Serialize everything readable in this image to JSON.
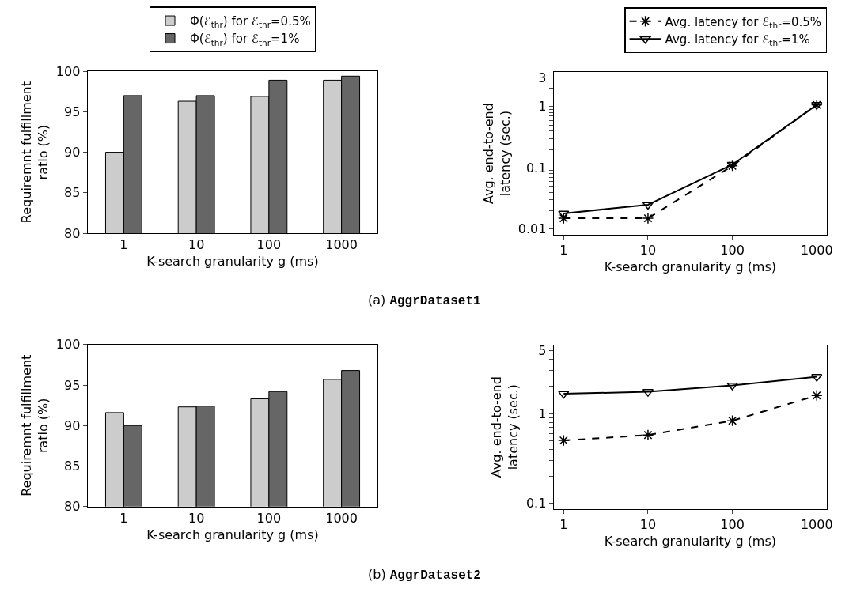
{
  "chart_data": [
    {
      "type": "bar",
      "categories": [
        "1",
        "10",
        "100",
        "1000"
      ],
      "xlabel": "K-search granularity g (ms)",
      "ylabel": "Requiremnt fulfillment ratio (%)",
      "ylim": [
        80,
        100
      ],
      "yticks": [
        80,
        85,
        90,
        95,
        100
      ],
      "legend": "top",
      "annotations": [
        "(a) AggrDataset1"
      ],
      "series": [
        {
          "name": "Φ(ℰ$_{thr}$) for ℰ$_{thr}$=0.5%",
          "color": "#cccccc",
          "values": [
            90.0,
            96.3,
            96.9,
            98.9
          ]
        },
        {
          "name": "Φ(ℰ$_{thr}$) for ℰ$_{thr}$=1%",
          "color": "#666666",
          "values": [
            97.0,
            97.0,
            98.9,
            99.4
          ]
        }
      ]
    },
    {
      "type": "line",
      "x": [
        1,
        10,
        100,
        1000
      ],
      "xlabel": "K-search granularity g (ms)",
      "ylabel": "Avg. end-to-end latency (sec.)",
      "log": "xy",
      "xlim": [
        0.76,
        1320
      ],
      "xticks": [
        1,
        10,
        100,
        1000
      ],
      "ylim": [
        0.008,
        3.7
      ],
      "yticks": [
        0.01,
        {
          "value": 0.02,
          "label": null
        },
        {
          "value": 0.03,
          "label": null
        },
        {
          "value": 0.04,
          "label": null
        },
        {
          "value": 0.05,
          "label": null
        },
        {
          "value": 0.06,
          "label": null
        },
        {
          "value": 0.07,
          "label": null
        },
        {
          "value": 0.08,
          "label": null
        },
        {
          "value": 0.09,
          "label": null
        },
        0.1,
        {
          "value": 0.2,
          "label": null
        },
        {
          "value": 0.3,
          "label": null
        },
        {
          "value": 0.4,
          "label": null
        },
        {
          "value": 0.5,
          "label": null
        },
        {
          "value": 0.6,
          "label": null
        },
        {
          "value": 0.7,
          "label": null
        },
        {
          "value": 0.8,
          "label": null
        },
        {
          "value": 0.9,
          "label": null
        },
        1,
        {
          "value": 2,
          "label": null
        },
        3
      ],
      "legend": "top right",
      "series": [
        {
          "name": "Avg. latency for ℰ$_{thr}$=0.5%",
          "color": "#000000",
          "marker": "cross",
          "line_style": "dashed",
          "values": [
            0.015,
            0.015,
            0.108,
            1.07
          ]
        },
        {
          "name": "Avg. latency for ℰ$_{thr}$=1%",
          "color": "#000000",
          "marker": "triangle",
          "line_style": "solid",
          "values": [
            0.018,
            0.025,
            0.113,
            1.07
          ]
        }
      ]
    },
    {
      "type": "bar",
      "categories": [
        "1",
        "10",
        "100",
        "1000"
      ],
      "xlabel": "K-search granularity g (ms)",
      "ylabel": "Requiremnt fulfillment ratio (%)",
      "ylim": [
        80,
        100
      ],
      "yticks": [
        80,
        85,
        90,
        95,
        100
      ],
      "annotations": [
        "(b) AggrDataset2"
      ],
      "series": [
        {
          "color": "#cccccc",
          "values": [
            91.6,
            92.3,
            93.3,
            95.7
          ]
        },
        {
          "color": "#666666",
          "values": [
            90.0,
            92.4,
            94.2,
            96.8
          ]
        }
      ]
    },
    {
      "type": "line",
      "x": [
        1,
        10,
        100,
        1000
      ],
      "xlabel": "K-search granularity g (ms)",
      "ylabel": "Avg. end-to-end latency (sec.)",
      "log": "xy",
      "xlim": [
        0.76,
        1320
      ],
      "xticks": [
        1,
        10,
        100,
        1000
      ],
      "ylim": [
        0.086,
        5.8
      ],
      "yticks": [
        0.1,
        {
          "value": 0.2,
          "label": null
        },
        {
          "value": 0.3,
          "label": null
        },
        {
          "value": 0.4,
          "label": null
        },
        {
          "value": 0.5,
          "label": null
        },
        {
          "value": 0.6,
          "label": null
        },
        {
          "value": 0.7,
          "label": null
        },
        {
          "value": 0.8,
          "label": null
        },
        {
          "value": 0.9,
          "label": null
        },
        1,
        {
          "value": 2,
          "label": null
        },
        {
          "value": 3,
          "label": null
        },
        {
          "value": 4,
          "label": null
        },
        5
      ],
      "series": [
        {
          "color": "#000000",
          "marker": "cross",
          "line_style": "dashed",
          "values": [
            0.5,
            0.575,
            0.83,
            1.59
          ]
        },
        {
          "color": "#000000",
          "marker": "triangle",
          "line_style": "solid",
          "values": [
            1.66,
            1.75,
            2.06,
            2.57
          ]
        }
      ]
    }
  ]
}
